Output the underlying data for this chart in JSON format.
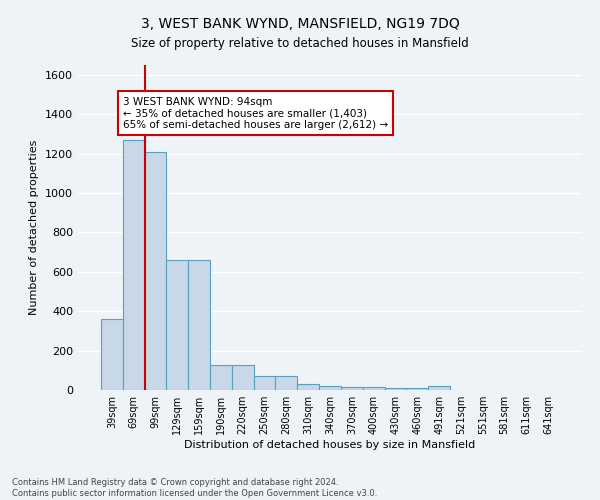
{
  "title": "3, WEST BANK WYND, MANSFIELD, NG19 7DQ",
  "subtitle": "Size of property relative to detached houses in Mansfield",
  "xlabel": "Distribution of detached houses by size in Mansfield",
  "ylabel": "Number of detached properties",
  "footer_line1": "Contains HM Land Registry data © Crown copyright and database right 2024.",
  "footer_line2": "Contains public sector information licensed under the Open Government Licence v3.0.",
  "bins": [
    "39sqm",
    "69sqm",
    "99sqm",
    "129sqm",
    "159sqm",
    "190sqm",
    "220sqm",
    "250sqm",
    "280sqm",
    "310sqm",
    "340sqm",
    "370sqm",
    "400sqm",
    "430sqm",
    "460sqm",
    "491sqm",
    "521sqm",
    "551sqm",
    "581sqm",
    "611sqm",
    "641sqm"
  ],
  "values": [
    360,
    1270,
    1210,
    660,
    660,
    125,
    125,
    70,
    70,
    33,
    20,
    15,
    15,
    10,
    10,
    20,
    0,
    0,
    0,
    0,
    0
  ],
  "bar_color": "#c8d8e8",
  "bar_edge_color": "#5a9fc0",
  "red_line_x": 2,
  "red_line_color": "#cc0000",
  "annotation_text": "3 WEST BANK WYND: 94sqm\n← 35% of detached houses are smaller (1,403)\n65% of semi-detached houses are larger (2,612) →",
  "annotation_box_color": "white",
  "annotation_box_edge_color": "#cc0000",
  "ylim": [
    0,
    1650
  ],
  "yticks": [
    0,
    200,
    400,
    600,
    800,
    1000,
    1200,
    1400,
    1600
  ],
  "background_color": "#eef3f8",
  "grid_color": "white"
}
